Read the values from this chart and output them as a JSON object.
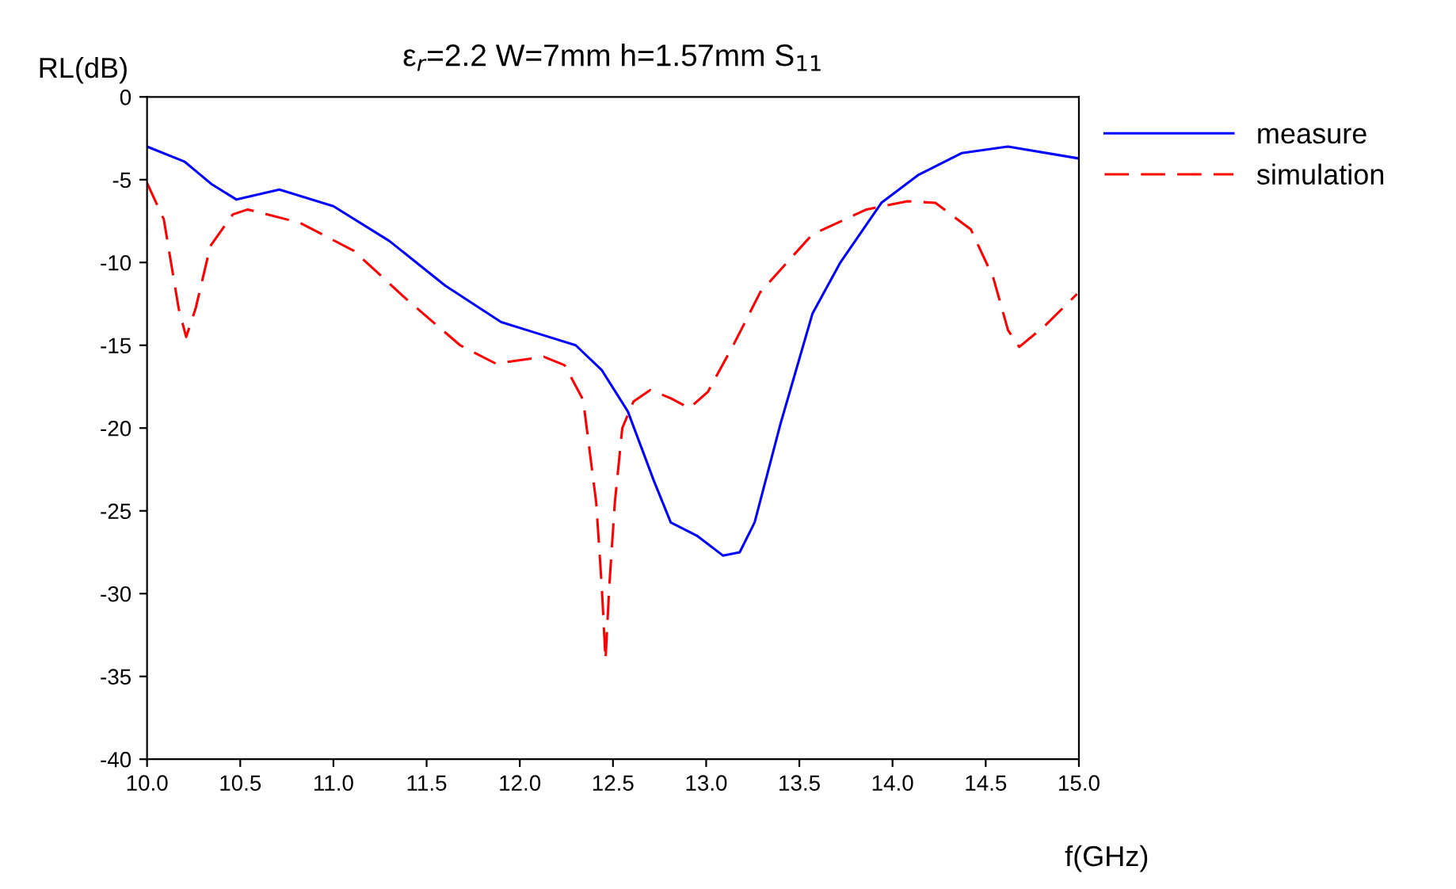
{
  "chart_data": {
    "type": "line",
    "title": "ε$_{r}$=2.2 W=7mm h=1.57mm S$_{11}$",
    "xlabel": "f(GHz)",
    "ylabel": "RL(dB)",
    "xlim": [
      10.0,
      15.0
    ],
    "ylim": [
      -40,
      0
    ],
    "xticks": [
      {
        "value": 10,
        "label": "10.0"
      },
      {
        "value": 10.5,
        "label": "10.5"
      },
      {
        "value": 11,
        "label": "11.0"
      },
      {
        "value": 11.5,
        "label": "11.5"
      },
      {
        "value": 12,
        "label": "12.0"
      },
      {
        "value": 12.5,
        "label": "12.5"
      },
      {
        "value": 13,
        "label": "13.0"
      },
      {
        "value": 13.5,
        "label": "13.5"
      },
      {
        "value": 14,
        "label": "14.0"
      },
      {
        "value": 14.5,
        "label": "14.5"
      },
      {
        "value": 15,
        "label": "15.0"
      }
    ],
    "yticks": [
      -40,
      -35,
      -30,
      -25,
      -20,
      -15,
      -10,
      -5,
      0
    ],
    "grid": false,
    "legend": "top right",
    "marker": "none",
    "series": [
      {
        "name": "measure",
        "color": "#0000ff",
        "line_style": "solid",
        "x": [
          10.0,
          10.2,
          10.35,
          10.48,
          10.71,
          11.0,
          11.3,
          11.6,
          11.9,
          12.1,
          12.3,
          12.44,
          12.58,
          12.72,
          12.81,
          12.95,
          13.09,
          13.18,
          13.26,
          13.4,
          13.57,
          13.72,
          13.94,
          14.14,
          14.37,
          14.62,
          14.99
        ],
        "values": [
          -3.0,
          -3.9,
          -5.3,
          -6.2,
          -5.6,
          -6.6,
          -8.7,
          -11.4,
          -13.6,
          -14.3,
          -15.0,
          -16.5,
          -19.0,
          -23.2,
          -25.7,
          -26.5,
          -27.7,
          -27.5,
          -25.7,
          -19.7,
          -13.1,
          -10.0,
          -6.4,
          -4.7,
          -3.4,
          -3.0,
          -3.7
        ]
      },
      {
        "name": "simulation",
        "color": "#ff0000",
        "line_style": "dashed",
        "x": [
          10.0,
          10.09,
          10.17,
          10.21,
          10.26,
          10.34,
          10.46,
          10.54,
          10.82,
          11.11,
          11.39,
          11.68,
          11.87,
          12.13,
          12.24,
          12.34,
          12.41,
          12.44,
          12.46,
          12.48,
          12.51,
          12.55,
          12.61,
          12.7,
          12.81,
          12.91,
          13.01,
          13.15,
          13.29,
          13.57,
          13.86,
          14.08,
          14.23,
          14.42,
          14.54,
          14.62,
          14.68,
          14.82,
          14.99
        ],
        "values": [
          -5.2,
          -7.4,
          -12.8,
          -14.5,
          -12.8,
          -9.0,
          -7.1,
          -6.8,
          -7.6,
          -9.3,
          -12.2,
          -15.0,
          -16.1,
          -15.7,
          -16.2,
          -18.3,
          -24.5,
          -29.6,
          -34.0,
          -29.6,
          -24.5,
          -20.0,
          -18.4,
          -17.7,
          -18.2,
          -18.8,
          -17.8,
          -14.9,
          -11.8,
          -8.3,
          -6.8,
          -6.3,
          -6.4,
          -8.0,
          -10.9,
          -14.1,
          -15.1,
          -13.8,
          -11.9
        ]
      }
    ]
  }
}
